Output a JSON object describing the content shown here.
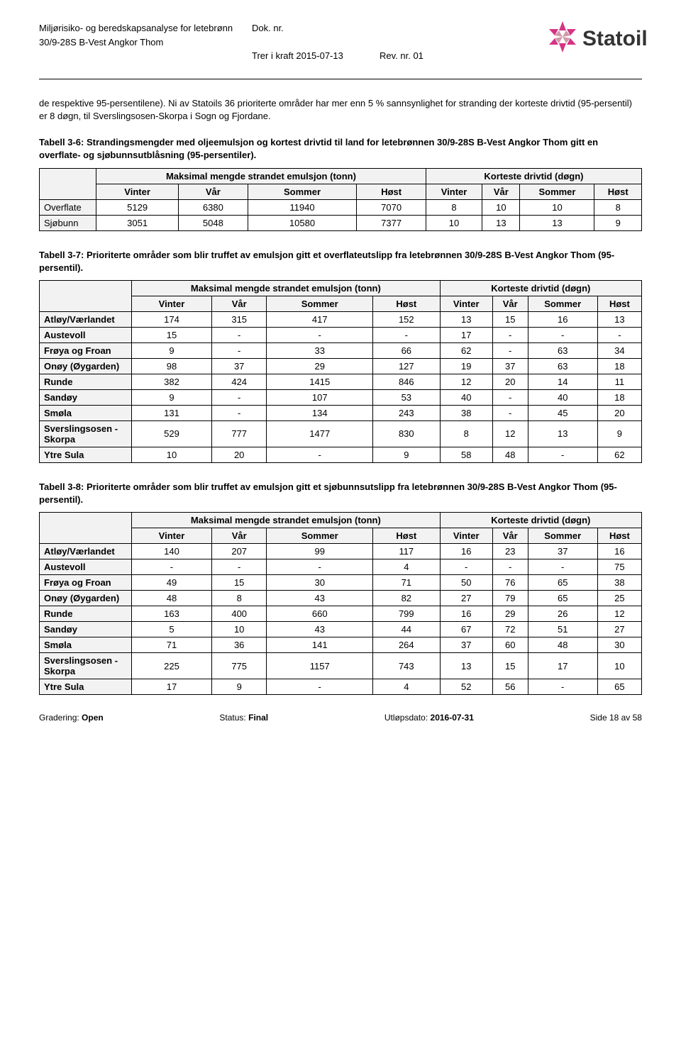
{
  "header": {
    "line1_left": "Miljørisiko- og beredskapsanalyse for letebrønn",
    "line1_center": "Dok. nr.",
    "line2_left": "30/9-28S B-Vest Angkor Thom",
    "line3_center": "Trer i kraft 2015-07-13",
    "line3_right": "Rev. nr. 01"
  },
  "logo": {
    "brand": "Statoil",
    "color": "#d63384"
  },
  "paragraph": "de respektive 95-persentilene). Ni av Statoils 36 prioriterte områder har mer enn 5 % sannsynlighet for stranding der korteste drivtid (95-persentil) er 8 døgn, til Sverslingsosen-Skorpa i Sogn og Fjordane.",
  "table36": {
    "caption": "Tabell 3-6: Strandingsmengder med oljeemulsjon og kortest drivtid til land for letebrønnen 30/9-28S B-Vest Angkor Thom gitt en overflate- og sjøbunnsutblåsning (95-persentiler).",
    "group1": "Maksimal mengde strandet emulsjon (tonn)",
    "group2": "Korteste drivtid (døgn)",
    "seasons": [
      "Vinter",
      "Vår",
      "Sommer",
      "Høst",
      "Vinter",
      "Vår",
      "Sommer",
      "Høst"
    ],
    "rows": [
      {
        "label": "Overflate",
        "vals": [
          "5129",
          "6380",
          "11940",
          "7070",
          "8",
          "10",
          "10",
          "8"
        ]
      },
      {
        "label": "Sjøbunn",
        "vals": [
          "3051",
          "5048",
          "10580",
          "7377",
          "10",
          "13",
          "13",
          "9"
        ]
      }
    ]
  },
  "table37": {
    "caption": "Tabell 3-7: Prioriterte områder som blir truffet av emulsjon gitt et overflateutslipp fra letebrønnen 30/9-28S B-Vest Angkor Thom (95-persentil).",
    "group1": "Maksimal mengde strandet emulsjon (tonn)",
    "group2": "Korteste drivtid (døgn)",
    "seasons": [
      "Vinter",
      "Vår",
      "Sommer",
      "Høst",
      "Vinter",
      "Vår",
      "Sommer",
      "Høst"
    ],
    "rows": [
      {
        "label": "Atløy/Værlandet",
        "vals": [
          "174",
          "315",
          "417",
          "152",
          "13",
          "15",
          "16",
          "13"
        ]
      },
      {
        "label": "Austevoll",
        "vals": [
          "15",
          "-",
          "-",
          "-",
          "17",
          "-",
          "-",
          "-"
        ]
      },
      {
        "label": "Frøya og Froan",
        "vals": [
          "9",
          "-",
          "33",
          "66",
          "62",
          "-",
          "63",
          "34"
        ]
      },
      {
        "label": "Onøy (Øygarden)",
        "vals": [
          "98",
          "37",
          "29",
          "127",
          "19",
          "37",
          "63",
          "18"
        ]
      },
      {
        "label": "Runde",
        "vals": [
          "382",
          "424",
          "1415",
          "846",
          "12",
          "20",
          "14",
          "11"
        ]
      },
      {
        "label": "Sandøy",
        "vals": [
          "9",
          "-",
          "107",
          "53",
          "40",
          "-",
          "40",
          "18"
        ]
      },
      {
        "label": "Smøla",
        "vals": [
          "131",
          "-",
          "134",
          "243",
          "38",
          "-",
          "45",
          "20"
        ]
      },
      {
        "label": "Sverslingsosen - Skorpa",
        "vals": [
          "529",
          "777",
          "1477",
          "830",
          "8",
          "12",
          "13",
          "9"
        ]
      },
      {
        "label": "Ytre Sula",
        "vals": [
          "10",
          "20",
          "-",
          "9",
          "58",
          "48",
          "-",
          "62"
        ]
      }
    ]
  },
  "table38": {
    "caption": "Tabell 3-8: Prioriterte områder som blir truffet av emulsjon gitt et sjøbunnsutslipp fra letebrønnen 30/9-28S B-Vest Angkor Thom (95-persentil).",
    "group1": "Maksimal mengde strandet emulsjon (tonn)",
    "group2": "Korteste drivtid (døgn)",
    "seasons": [
      "Vinter",
      "Vår",
      "Sommer",
      "Høst",
      "Vinter",
      "Vår",
      "Sommer",
      "Høst"
    ],
    "rows": [
      {
        "label": "Atløy/Værlandet",
        "vals": [
          "140",
          "207",
          "99",
          "117",
          "16",
          "23",
          "37",
          "16"
        ]
      },
      {
        "label": "Austevoll",
        "vals": [
          "-",
          "-",
          "-",
          "4",
          "-",
          "-",
          "-",
          "75"
        ]
      },
      {
        "label": "Frøya og Froan",
        "vals": [
          "49",
          "15",
          "30",
          "71",
          "50",
          "76",
          "65",
          "38"
        ]
      },
      {
        "label": "Onøy (Øygarden)",
        "vals": [
          "48",
          "8",
          "43",
          "82",
          "27",
          "79",
          "65",
          "25"
        ]
      },
      {
        "label": "Runde",
        "vals": [
          "163",
          "400",
          "660",
          "799",
          "16",
          "29",
          "26",
          "12"
        ]
      },
      {
        "label": "Sandøy",
        "vals": [
          "5",
          "10",
          "43",
          "44",
          "67",
          "72",
          "51",
          "27"
        ]
      },
      {
        "label": "Smøla",
        "vals": [
          "71",
          "36",
          "141",
          "264",
          "37",
          "60",
          "48",
          "30"
        ]
      },
      {
        "label": "Sverslingsosen - Skorpa",
        "vals": [
          "225",
          "775",
          "1157",
          "743",
          "13",
          "15",
          "17",
          "10"
        ]
      },
      {
        "label": "Ytre Sula",
        "vals": [
          "17",
          "9",
          "-",
          "4",
          "52",
          "56",
          "-",
          "65"
        ]
      }
    ]
  },
  "footer": {
    "left_label": "Gradering:",
    "left_value": "Open",
    "center_label": "Status:",
    "center_value": "Final",
    "center2_label": "Utløpsdato:",
    "center2_value": "2016-07-31",
    "right": "Side 18 av 58"
  }
}
